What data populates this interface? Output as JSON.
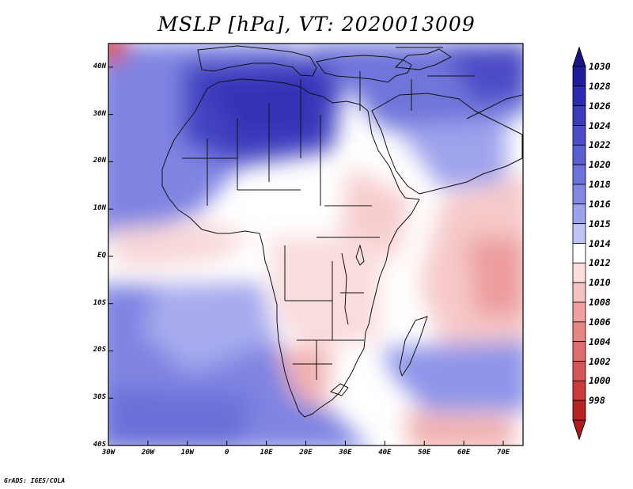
{
  "title": "MSLP [hPa], VT: 2020013009",
  "credit": "GrADS: IGES/COLA",
  "map": {
    "region": "Africa",
    "variable": "Mean sea level pressure",
    "units": "hPa",
    "lon_range": [
      -30,
      75
    ],
    "lat_range": [
      -40,
      45
    ],
    "lon_ticks": [
      {
        "value": -30,
        "label": "30W"
      },
      {
        "value": -20,
        "label": "20W"
      },
      {
        "value": -10,
        "label": "10W"
      },
      {
        "value": 0,
        "label": "0"
      },
      {
        "value": 10,
        "label": "10E"
      },
      {
        "value": 20,
        "label": "20E"
      },
      {
        "value": 30,
        "label": "30E"
      },
      {
        "value": 40,
        "label": "40E"
      },
      {
        "value": 50,
        "label": "50E"
      },
      {
        "value": 60,
        "label": "60E"
      },
      {
        "value": 70,
        "label": "70E"
      }
    ],
    "lat_ticks": [
      {
        "value": 40,
        "label": "40N"
      },
      {
        "value": 30,
        "label": "30N"
      },
      {
        "value": 20,
        "label": "20N"
      },
      {
        "value": 10,
        "label": "10N"
      },
      {
        "value": 0,
        "label": "EQ"
      },
      {
        "value": -10,
        "label": "10S"
      },
      {
        "value": -20,
        "label": "20S"
      },
      {
        "value": -30,
        "label": "30S"
      },
      {
        "value": -40,
        "label": "40S"
      }
    ]
  },
  "colorbar": {
    "levels": [
      {
        "label": "1030",
        "color": "#1f1aa0"
      },
      {
        "label": "1028",
        "color": "#2d29b0"
      },
      {
        "label": "1026",
        "color": "#3c3abd"
      },
      {
        "label": "1024",
        "color": "#4c4cc8"
      },
      {
        "label": "1022",
        "color": "#5c5fd2"
      },
      {
        "label": "1020",
        "color": "#6e72db"
      },
      {
        "label": "1018",
        "color": "#8387e4"
      },
      {
        "label": "1016",
        "color": "#9ea2ec"
      },
      {
        "label": "1015",
        "color": "#c2c4f4"
      },
      {
        "label": "1014",
        "color": "#ffffff"
      },
      {
        "label": "1012",
        "color": "#fbdede"
      },
      {
        "label": "1010",
        "color": "#f5c2c2"
      },
      {
        "label": "1008",
        "color": "#ee9f9f"
      },
      {
        "label": "1006",
        "color": "#e88686"
      },
      {
        "label": "1004",
        "color": "#e06d6d"
      },
      {
        "label": "1002",
        "color": "#d85353"
      },
      {
        "label": "1000",
        "color": "#cc3a3a"
      },
      {
        "label": "998",
        "color": "#b82222"
      }
    ],
    "over_color": "#1a148c",
    "under_color": "#b31a1a"
  }
}
